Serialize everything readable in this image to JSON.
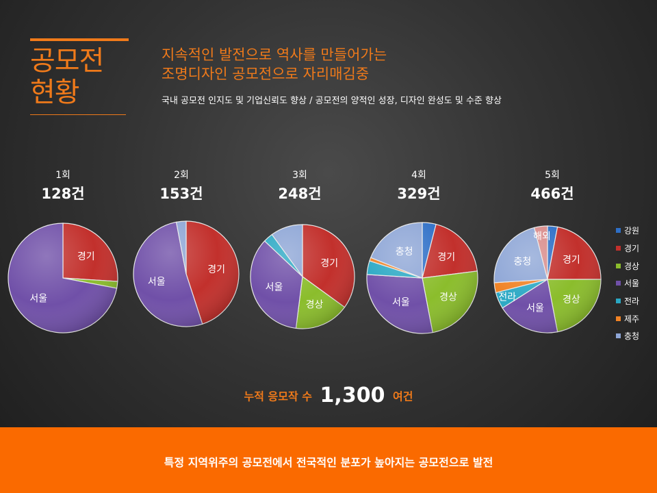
{
  "title_line1": "공모전",
  "title_line2": "현황",
  "headline_line1": "지속적인 발전으로 역사를 만들어가는",
  "headline_line2": "조명디자인 공모전으로 자리매김중",
  "subline": "국내 공모전 인지도 및 기업신뢰도 향상 / 공모전의 양적인 성장, 디자인 완성도 및 수준 향상",
  "total": {
    "prefix": "누적 응모작 수",
    "value": "1,300",
    "suffix": "여건"
  },
  "footer": "특정 지역위주의 공모전에서 전국적인 분포가 높아지는 공모전으로 발전",
  "colors": {
    "강원": "#2e6fc7",
    "경기": "#c2302c",
    "경상": "#8bbd2c",
    "서울": "#7050a8",
    "전라": "#2aa8c4",
    "제주": "#f08224",
    "충청": "#8ea6d6",
    "해외": "#d98b8a"
  },
  "legend": [
    "강원",
    "경기",
    "경상",
    "서울",
    "전라",
    "제주",
    "충청"
  ],
  "chart_data": [
    {
      "type": "pie",
      "round": "1회",
      "count": "128건",
      "slices": [
        {
          "label": "경기",
          "value": 0.26,
          "show": true
        },
        {
          "label": "경상",
          "value": 0.02,
          "show": false
        },
        {
          "label": "서울",
          "value": 0.72,
          "show": true
        }
      ]
    },
    {
      "type": "pie",
      "round": "2회",
      "count": "153건",
      "slices": [
        {
          "label": "경기",
          "value": 0.45,
          "show": true
        },
        {
          "label": "서울",
          "value": 0.52,
          "show": true
        },
        {
          "label": "충청",
          "value": 0.03,
          "show": false
        }
      ]
    },
    {
      "type": "pie",
      "round": "3회",
      "count": "248건",
      "slices": [
        {
          "label": "경기",
          "value": 0.35,
          "show": true
        },
        {
          "label": "경상",
          "value": 0.17,
          "show": true
        },
        {
          "label": "서울",
          "value": 0.35,
          "show": true
        },
        {
          "label": "전라",
          "value": 0.03,
          "show": false
        },
        {
          "label": "충청",
          "value": 0.1,
          "show": false
        }
      ]
    },
    {
      "type": "pie",
      "round": "4회",
      "count": "329건",
      "slices": [
        {
          "label": "강원",
          "value": 0.04,
          "show": false
        },
        {
          "label": "경기",
          "value": 0.19,
          "show": true
        },
        {
          "label": "경상",
          "value": 0.24,
          "show": true
        },
        {
          "label": "서울",
          "value": 0.29,
          "show": true
        },
        {
          "label": "전라",
          "value": 0.04,
          "show": false
        },
        {
          "label": "제주",
          "value": 0.01,
          "show": false
        },
        {
          "label": "충청",
          "value": 0.19,
          "show": true
        }
      ]
    },
    {
      "type": "pie",
      "round": "5회",
      "count": "466건",
      "slices": [
        {
          "label": "강원",
          "value": 0.03,
          "show": false
        },
        {
          "label": "경기",
          "value": 0.22,
          "show": true
        },
        {
          "label": "경상",
          "value": 0.22,
          "show": true
        },
        {
          "label": "서울",
          "value": 0.19,
          "show": true
        },
        {
          "label": "전라",
          "value": 0.05,
          "show": true
        },
        {
          "label": "제주",
          "value": 0.03,
          "show": false
        },
        {
          "label": "충청",
          "value": 0.22,
          "show": true
        },
        {
          "label": "해외",
          "value": 0.04,
          "show": true
        }
      ]
    }
  ]
}
